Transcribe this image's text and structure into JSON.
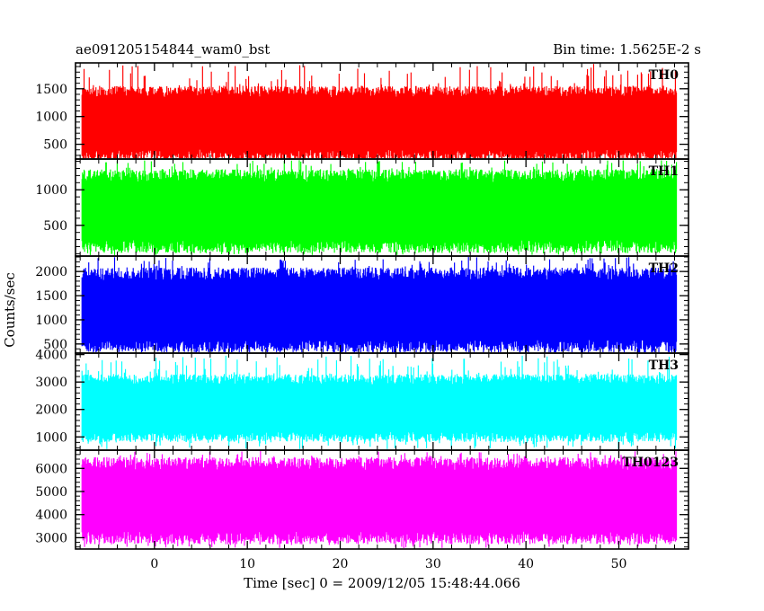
{
  "chart_data": {
    "type": "line",
    "title": "ae091205154844_wam0_bst",
    "subtitle": "Bin time: 1.5625E-2 s",
    "xlabel": "Time [sec] 0 = 2009/12/05 15:48:44.066",
    "ylabel": "Counts/sec",
    "xlim": [
      -8.5,
      57.5
    ],
    "xticks": [
      0,
      10,
      20,
      30,
      40,
      50
    ],
    "data_x_range": [
      -7.8,
      56.2
    ],
    "grid": false,
    "panels": [
      {
        "label": "TH0",
        "color": "#ff0000",
        "ylim": [
          250,
          1950
        ],
        "yticks": [
          500,
          1000,
          1500
        ],
        "typical_range": [
          300,
          1450
        ],
        "peak_range": [
          100,
          1950
        ]
      },
      {
        "label": "TH1",
        "color": "#00ff00",
        "ylim": [
          80,
          1420
        ],
        "yticks": [
          500,
          1000
        ],
        "typical_range": [
          200,
          1200
        ],
        "peak_range": [
          80,
          1420
        ]
      },
      {
        "label": "TH2",
        "color": "#0000ff",
        "ylim": [
          330,
          2300
        ],
        "yticks": [
          500,
          1000,
          1500,
          2000
        ],
        "typical_range": [
          450,
          1950
        ],
        "peak_range": [
          330,
          2300
        ]
      },
      {
        "label": "TH3",
        "color": "#00ffff",
        "ylim": [
          550,
          4020
        ],
        "yticks": [
          1000,
          2000,
          3000,
          4000
        ],
        "typical_range": [
          1000,
          3100
        ],
        "peak_range": [
          550,
          4000
        ]
      },
      {
        "label": "TH0123",
        "color": "#ff00ff",
        "ylim": [
          2550,
          6750
        ],
        "yticks": [
          3000,
          4000,
          5000,
          6000
        ],
        "typical_range": [
          3000,
          6200
        ],
        "peak_range": [
          2550,
          6750
        ]
      }
    ]
  }
}
